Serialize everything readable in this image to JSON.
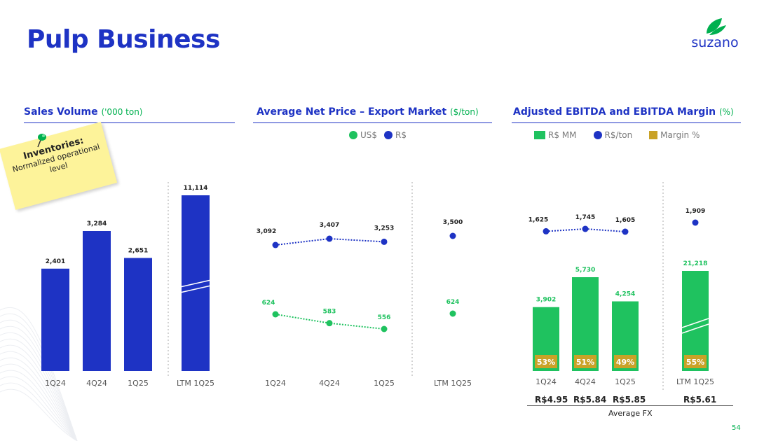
{
  "page": {
    "title": "Pulp Business",
    "page_number": "54",
    "logo_text": "suzano",
    "brand_blue": "#1e33c4",
    "brand_green": "#00b04f",
    "accent_gold": "#c9a227"
  },
  "sticky_note": {
    "heading": "Inventories:",
    "body": "Normalized operational level"
  },
  "sections": {
    "sales": {
      "title": "Sales Volume",
      "unit": "('000 ton)"
    },
    "price": {
      "title": "Average Net Price – Export Market",
      "unit": "($/ton)"
    },
    "ebitda": {
      "title": "Adjusted EBITDA and EBITDA Margin",
      "unit": "(%)"
    }
  },
  "fx": {
    "caption": "Average FX",
    "values": [
      "R$4.95",
      "R$5.84",
      "R$5.85",
      "R$5.61"
    ]
  },
  "chart_data": [
    {
      "type": "bar",
      "title": "Sales Volume ('000 ton)",
      "categories": [
        "1Q24",
        "4Q24",
        "1Q25",
        "LTM 1Q25"
      ],
      "values": [
        2401,
        3284,
        2651,
        11114
      ],
      "value_labels": [
        "2,401",
        "3,284",
        "2,651",
        "11,114"
      ],
      "note": "LTM bar drawn on a broken axis"
    },
    {
      "type": "line",
      "title": "Average Net Price – Export Market ($/ton)",
      "categories": [
        "1Q24",
        "4Q24",
        "1Q25",
        "LTM 1Q25"
      ],
      "legend": [
        "US$",
        "R$"
      ],
      "series": [
        {
          "name": "US$",
          "values": [
            624,
            583,
            556,
            624
          ],
          "labels": [
            "624",
            "583",
            "556",
            "624"
          ]
        },
        {
          "name": "R$",
          "values": [
            3092,
            3407,
            3253,
            3500
          ],
          "labels": [
            "3,092",
            "3,407",
            "3,253",
            "3,500"
          ]
        }
      ]
    },
    {
      "type": "bar",
      "title": "Adjusted EBITDA and EBITDA Margin (%)",
      "categories": [
        "1Q24",
        "4Q24",
        "1Q25",
        "LTM 1Q25"
      ],
      "legend": [
        "R$ MM",
        "R$/ton",
        "Margin %"
      ],
      "series": [
        {
          "name": "R$ MM",
          "values": [
            3902,
            5730,
            4254,
            21218
          ],
          "labels": [
            "3,902",
            "5,730",
            "4,254",
            "21,218"
          ]
        },
        {
          "name": "R$/ton",
          "values": [
            1625,
            1745,
            1605,
            1909
          ],
          "labels": [
            "1,625",
            "1,745",
            "1,605",
            "1,909"
          ]
        },
        {
          "name": "Margin %",
          "values": [
            53,
            51,
            49,
            55
          ],
          "labels": [
            "53%",
            "51%",
            "49%",
            "55%"
          ]
        }
      ]
    }
  ]
}
